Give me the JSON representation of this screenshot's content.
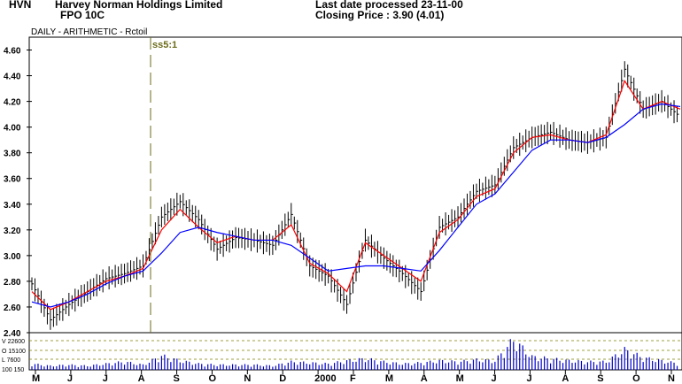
{
  "header": {
    "code": "HVN",
    "company": "Harvey Norman Holdings Limited",
    "security": "FPO 10C",
    "last_date": "Last date processed 23-11-00",
    "closing": "Closing Price : 3.90  (4.01)"
  },
  "chart_data": {
    "type": "line",
    "subtitle": "DAILY  -  ARITHMETIC  -        Rctoil",
    "annotation": "ss5:1",
    "price_axis": {
      "ylim": [
        2.4,
        4.7
      ],
      "ticks": [
        "2.40",
        "2.60",
        "2.80",
        "3.00",
        "3.20",
        "3.40",
        "3.60",
        "3.80",
        "4.00",
        "4.20",
        "4.40",
        "4.60"
      ]
    },
    "volume_axis": {
      "labels": [
        "V 22600",
        "O 15100",
        "L  7600",
        "100  150"
      ]
    },
    "x_labels": [
      "M",
      "J",
      "J",
      "A",
      "S",
      "O",
      "N",
      "D",
      "2000",
      "F",
      "M",
      "A",
      "M",
      "J",
      "J",
      "A",
      "S",
      "O",
      "N"
    ],
    "series": [
      {
        "name": "price",
        "color": "#000000",
        "values": [
          2.78,
          2.5,
          2.62,
          2.72,
          2.82,
          2.86,
          2.92,
          3.3,
          3.42,
          3.28,
          3.05,
          3.14,
          3.12,
          3.08,
          3.32,
          2.92,
          2.84,
          2.62,
          3.12,
          2.98,
          2.86,
          2.72,
          3.22,
          3.3,
          3.5,
          3.55,
          3.84,
          3.92,
          3.96,
          3.9,
          3.88,
          3.92,
          4.45,
          4.14,
          4.2,
          4.08
        ]
      },
      {
        "name": "short-average",
        "color": "#ff0000",
        "values": [
          2.72,
          2.58,
          2.64,
          2.72,
          2.8,
          2.84,
          2.9,
          3.2,
          3.36,
          3.22,
          3.1,
          3.15,
          3.12,
          3.12,
          3.24,
          2.94,
          2.86,
          2.72,
          3.1,
          3.0,
          2.9,
          2.8,
          3.18,
          3.28,
          3.46,
          3.52,
          3.8,
          3.92,
          3.94,
          3.9,
          3.88,
          3.94,
          4.36,
          4.14,
          4.2,
          4.14
        ]
      },
      {
        "name": "long-average",
        "color": "#0000ff",
        "values": [
          2.64,
          2.6,
          2.64,
          2.7,
          2.78,
          2.84,
          2.88,
          3.02,
          3.18,
          3.22,
          3.18,
          3.15,
          3.12,
          3.12,
          3.08,
          2.98,
          2.88,
          2.9,
          2.92,
          2.92,
          2.9,
          2.88,
          3.04,
          3.22,
          3.4,
          3.48,
          3.65,
          3.82,
          3.9,
          3.9,
          3.88,
          3.92,
          4.02,
          4.14,
          4.18,
          4.16
        ]
      }
    ],
    "volume": [
      6000,
      4000,
      5000,
      4000,
      6000,
      8000,
      5000,
      14000,
      9000,
      6000,
      5000,
      5000,
      5000,
      4000,
      8000,
      7000,
      6000,
      9000,
      11000,
      8000,
      6000,
      7000,
      9000,
      8000,
      10000,
      9000,
      30000,
      13000,
      11000,
      9000,
      8000,
      8000,
      20000,
      12000,
      9000,
      6000
    ]
  }
}
